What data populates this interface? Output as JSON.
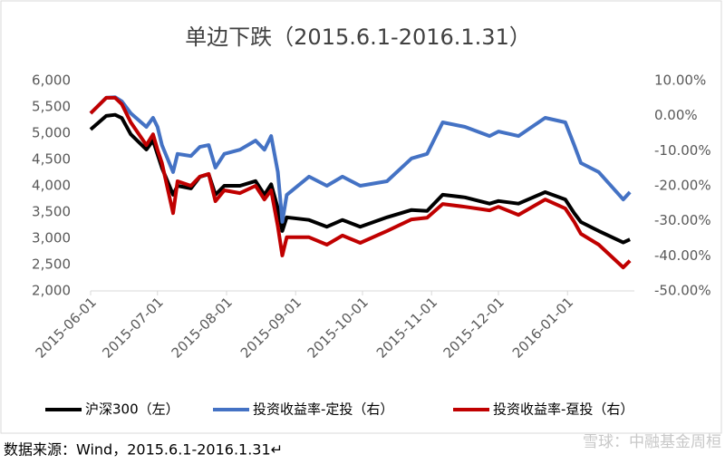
{
  "chart_data": {
    "type": "line",
    "title": "单边下跌（2015.6.1-2016.1.31）",
    "source_note": "数据来源：Wind，2015.6.1-2016.1.31↵",
    "watermark": "雪球：中融基金周桓",
    "x": [
      "2015-06-01",
      "2015-06-08",
      "2015-06-12",
      "2015-06-15",
      "2015-06-19",
      "2015-06-26",
      "2015-06-29",
      "2015-07-01",
      "2015-07-03",
      "2015-07-08",
      "2015-07-10",
      "2015-07-16",
      "2015-07-20",
      "2015-07-24",
      "2015-07-27",
      "2015-07-31",
      "2015-08-07",
      "2015-08-14",
      "2015-08-18",
      "2015-08-21",
      "2015-08-24",
      "2015-08-26",
      "2015-08-28",
      "2015-09-07",
      "2015-09-15",
      "2015-09-22",
      "2015-09-30",
      "2015-10-12",
      "2015-10-23",
      "2015-10-30",
      "2015-11-06",
      "2015-11-16",
      "2015-11-27",
      "2015-12-01",
      "2015-12-10",
      "2015-12-22",
      "2015-12-31",
      "2016-01-04",
      "2016-01-07",
      "2016-01-15",
      "2016-01-26",
      "2016-01-29"
    ],
    "xlim": [
      "2015-06-01",
      "2016-01-31"
    ],
    "xticks": [
      "2015-06-01",
      "2015-07-01",
      "2015-08-01",
      "2015-09-01",
      "2015-10-01",
      "2015-11-01",
      "2015-12-01",
      "2016-01-01"
    ],
    "series": [
      {
        "name": "沪深300（左）",
        "color": "#000000",
        "values": [
          5070,
          5330,
          5350,
          5290,
          4980,
          4690,
          4860,
          4600,
          4340,
          3830,
          4000,
          3950,
          4170,
          4220,
          3830,
          4000,
          4000,
          4090,
          3830,
          4030,
          3570,
          3140,
          3400,
          3350,
          3220,
          3350,
          3220,
          3400,
          3540,
          3520,
          3830,
          3780,
          3660,
          3710,
          3660,
          3880,
          3740,
          3480,
          3310,
          3140,
          2920,
          2980
        ]
      },
      {
        "name": "投资收益率-定投（右）",
        "color": "#4472c4",
        "axis": "y2",
        "values": [
          0.7,
          5.1,
          5.3,
          4.1,
          0.7,
          -3.2,
          -0.6,
          -3.2,
          -8.4,
          -16.1,
          -10.9,
          -11.5,
          -8.9,
          -8.4,
          -14.8,
          -10.9,
          -9.7,
          -7.1,
          -9.7,
          -5.8,
          -16.1,
          -30.3,
          -22.6,
          -17.4,
          -20,
          -17.4,
          -20,
          -18.7,
          -12.2,
          -10.9,
          -1.9,
          -3.2,
          -5.8,
          -4.5,
          -5.8,
          -0.6,
          -1.9,
          -8.4,
          -13.5,
          -16.1,
          -23.9,
          -21.8
        ]
      },
      {
        "name": "投资收益率-趸投（右）",
        "color": "#c00000",
        "axis": "y2",
        "values": [
          0.7,
          5.1,
          5.1,
          3.3,
          -1.9,
          -8.4,
          -5.3,
          -9.7,
          -13.5,
          -27.8,
          -18.7,
          -20,
          -17.4,
          -16.6,
          -24.4,
          -21.3,
          -22.1,
          -20,
          -23.9,
          -21.3,
          -31.6,
          -39.9,
          -34.7,
          -34.7,
          -36.8,
          -34.2,
          -36.3,
          -32.9,
          -29.6,
          -29.1,
          -25.2,
          -26,
          -27,
          -26,
          -28.3,
          -23.9,
          -26.5,
          -30.3,
          -33.7,
          -36.8,
          -43.3,
          -41.4
        ]
      }
    ],
    "ylim": [
      2000,
      6000
    ],
    "yticks": [
      {
        "value": 2000,
        "label": "2,000"
      },
      {
        "value": 2500,
        "label": "2,500"
      },
      {
        "value": 3000,
        "label": "3,000"
      },
      {
        "value": 3500,
        "label": "3,500"
      },
      {
        "value": 4000,
        "label": "4,000"
      },
      {
        "value": 4500,
        "label": "4,500"
      },
      {
        "value": 5000,
        "label": "5,000"
      },
      {
        "value": 5500,
        "label": "5,500"
      },
      {
        "value": 6000,
        "label": "6,000"
      }
    ],
    "y2lim": [
      -50,
      10
    ],
    "y2ticks": [
      {
        "value": -50,
        "label": "-50.00%"
      },
      {
        "value": -40,
        "label": "-40.00%"
      },
      {
        "value": -30,
        "label": "-30.00%"
      },
      {
        "value": -20,
        "label": "-20.00%"
      },
      {
        "value": -10,
        "label": "-10.00%"
      },
      {
        "value": 0,
        "label": "0.00%"
      },
      {
        "value": 10,
        "label": "10.00%"
      }
    ],
    "legend": "bottom"
  }
}
